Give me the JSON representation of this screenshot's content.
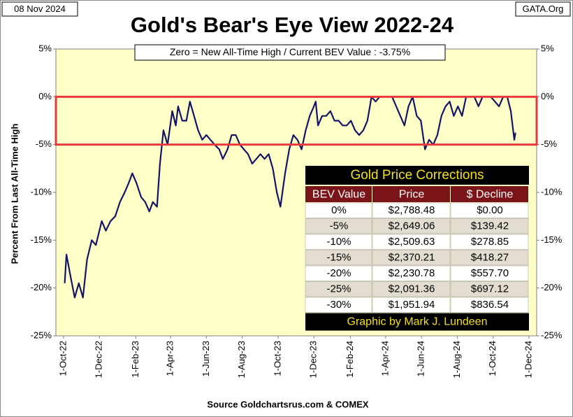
{
  "chart_data": {
    "type": "line",
    "date_label": "08 Nov 2024",
    "site_label": "GATA.Org",
    "title": "Gold's Bear's Eye View 2022-24",
    "annotation": "Zero = New All-Time High / Current  BEV Value : -3.75%",
    "ylabel": "Percent  From  Last  All-Time  High",
    "source": "Source Goldchartsrus.com & COMEX",
    "color": "#141466",
    "background": "#ffffc8",
    "highlight_band": [
      -5,
      0
    ],
    "highlight_color": "#e8383c",
    "grid": false,
    "xlim": [
      "2022-09-18",
      "2024-12-14"
    ],
    "xticks": [
      {
        "value": "2022-10-01",
        "label": "1-Oct-22"
      },
      {
        "value": "2022-12-01",
        "label": "1-Dec-22"
      },
      {
        "value": "2023-02-01",
        "label": "1-Feb-23"
      },
      {
        "value": "2023-04-01",
        "label": "1-Apr-23"
      },
      {
        "value": "2023-06-01",
        "label": "1-Jun-23"
      },
      {
        "value": "2023-08-01",
        "label": "1-Aug-23"
      },
      {
        "value": "2023-10-01",
        "label": "1-Oct-23"
      },
      {
        "value": "2023-12-01",
        "label": "1-Dec-23"
      },
      {
        "value": "2024-02-01",
        "label": "1-Feb-24"
      },
      {
        "value": "2024-04-01",
        "label": "1-Apr-24"
      },
      {
        "value": "2024-06-01",
        "label": "1-Jun-24"
      },
      {
        "value": "2024-08-01",
        "label": "1-Aug-24"
      },
      {
        "value": "2024-10-01",
        "label": "1-Oct-24"
      },
      {
        "value": "2024-12-01",
        "label": "1-Dec-24"
      }
    ],
    "ylim": [
      -25,
      5
    ],
    "yticks": [
      {
        "value": 5,
        "label": "5%"
      },
      {
        "value": 0,
        "label": "0%"
      },
      {
        "value": -5,
        "label": "-5%"
      },
      {
        "value": -10,
        "label": "-10%"
      },
      {
        "value": -15,
        "label": "-15%"
      },
      {
        "value": -20,
        "label": "-20%"
      },
      {
        "value": -25,
        "label": "-25%"
      }
    ],
    "y2lim": [
      -25,
      5
    ],
    "y2ticks": [
      {
        "value": 5,
        "label": "5%"
      },
      {
        "value": 0,
        "label": "0%"
      },
      {
        "value": -5,
        "label": "-5%"
      },
      {
        "value": -10,
        "label": "-10%"
      },
      {
        "value": -15,
        "label": "-15%"
      },
      {
        "value": -20,
        "label": "-20%"
      },
      {
        "value": -25,
        "label": "-25%"
      }
    ],
    "x": [
      "2022-10-03",
      "2022-10-06",
      "2022-10-12",
      "2022-10-20",
      "2022-10-27",
      "2022-11-03",
      "2022-11-10",
      "2022-11-18",
      "2022-11-25",
      "2022-12-05",
      "2022-12-12",
      "2022-12-20",
      "2022-12-28",
      "2023-01-05",
      "2023-01-13",
      "2023-01-20",
      "2023-01-26",
      "2023-02-02",
      "2023-02-10",
      "2023-02-17",
      "2023-02-24",
      "2023-03-02",
      "2023-03-09",
      "2023-03-14",
      "2023-03-20",
      "2023-03-27",
      "2023-04-04",
      "2023-04-10",
      "2023-04-14",
      "2023-04-21",
      "2023-04-28",
      "2023-05-04",
      "2023-05-11",
      "2023-05-18",
      "2023-05-25",
      "2023-06-01",
      "2023-06-08",
      "2023-06-15",
      "2023-06-23",
      "2023-06-29",
      "2023-07-07",
      "2023-07-14",
      "2023-07-21",
      "2023-07-28",
      "2023-08-04",
      "2023-08-11",
      "2023-08-18",
      "2023-08-25",
      "2023-09-01",
      "2023-09-08",
      "2023-09-15",
      "2023-09-22",
      "2023-09-29",
      "2023-10-05",
      "2023-10-13",
      "2023-10-20",
      "2023-10-27",
      "2023-11-03",
      "2023-11-10",
      "2023-11-17",
      "2023-11-24",
      "2023-12-01",
      "2023-12-04",
      "2023-12-08",
      "2023-12-15",
      "2023-12-22",
      "2023-12-29",
      "2024-01-05",
      "2024-01-12",
      "2024-01-19",
      "2024-01-26",
      "2024-02-02",
      "2024-02-09",
      "2024-02-16",
      "2024-02-23",
      "2024-03-01",
      "2024-03-08",
      "2024-03-15",
      "2024-03-22",
      "2024-03-29",
      "2024-04-05",
      "2024-04-12",
      "2024-04-19",
      "2024-04-26",
      "2024-05-03",
      "2024-05-10",
      "2024-05-17",
      "2024-05-24",
      "2024-05-31",
      "2024-06-07",
      "2024-06-14",
      "2024-06-21",
      "2024-06-28",
      "2024-07-05",
      "2024-07-12",
      "2024-07-19",
      "2024-07-26",
      "2024-08-02",
      "2024-08-09",
      "2024-08-16",
      "2024-08-23",
      "2024-08-30",
      "2024-09-06",
      "2024-09-13",
      "2024-09-20",
      "2024-09-27",
      "2024-10-04",
      "2024-10-11",
      "2024-10-18",
      "2024-10-25",
      "2024-10-31",
      "2024-11-06",
      "2024-11-08"
    ],
    "values": [
      -19.5,
      -16.5,
      -18.5,
      -21,
      -19.5,
      -21,
      -17,
      -15,
      -15.5,
      -13,
      -14,
      -13,
      -12.5,
      -11,
      -10,
      -9,
      -8,
      -9,
      -10.5,
      -11,
      -12,
      -11,
      -11.5,
      -7,
      -3.5,
      -5,
      -1.5,
      -3,
      -1,
      -2.5,
      -2.5,
      -0.5,
      -2,
      -3.5,
      -4.5,
      -4,
      -4.5,
      -5,
      -5.5,
      -6.5,
      -5.5,
      -4,
      -4,
      -5,
      -5.5,
      -6,
      -7,
      -6.5,
      -6,
      -6.5,
      -6,
      -7.5,
      -10,
      -11.5,
      -8,
      -5.5,
      -4,
      -4.5,
      -5.5,
      -3.5,
      -2,
      -1,
      -0.5,
      -3,
      -2,
      -2,
      -1.5,
      -2.5,
      -2.5,
      -3,
      -3,
      -2.5,
      -3.5,
      -4,
      -3.5,
      -2.5,
      0,
      -0.5,
      0,
      0,
      0,
      0,
      -1,
      -2,
      -3,
      -1,
      0,
      -2,
      -2.5,
      -5.5,
      -4.5,
      -5,
      -4,
      -2,
      -1,
      -0.5,
      -2,
      -1,
      -2,
      0,
      0,
      0,
      -1,
      0,
      0,
      0,
      -0.5,
      -1,
      0,
      0,
      -1.5,
      -4.5,
      -3.75
    ]
  },
  "table": {
    "title": "Gold Price Corrections",
    "columns": [
      "BEV Value",
      "Price",
      "$ Decline"
    ],
    "rows": [
      [
        "0%",
        "$2,788.48",
        "$0.00"
      ],
      [
        "-5%",
        "$2,649.06",
        "$139.42"
      ],
      [
        "-10%",
        "$2,509.63",
        "$278.85"
      ],
      [
        "-15%",
        "$2,370.21",
        "$418.27"
      ],
      [
        "-20%",
        "$2,230.78",
        "$557.70"
      ],
      [
        "-25%",
        "$2,091.36",
        "$697.12"
      ],
      [
        "-30%",
        "$1,951.94",
        "$836.54"
      ]
    ],
    "footer": "Graphic by Mark J. Lundeen"
  }
}
